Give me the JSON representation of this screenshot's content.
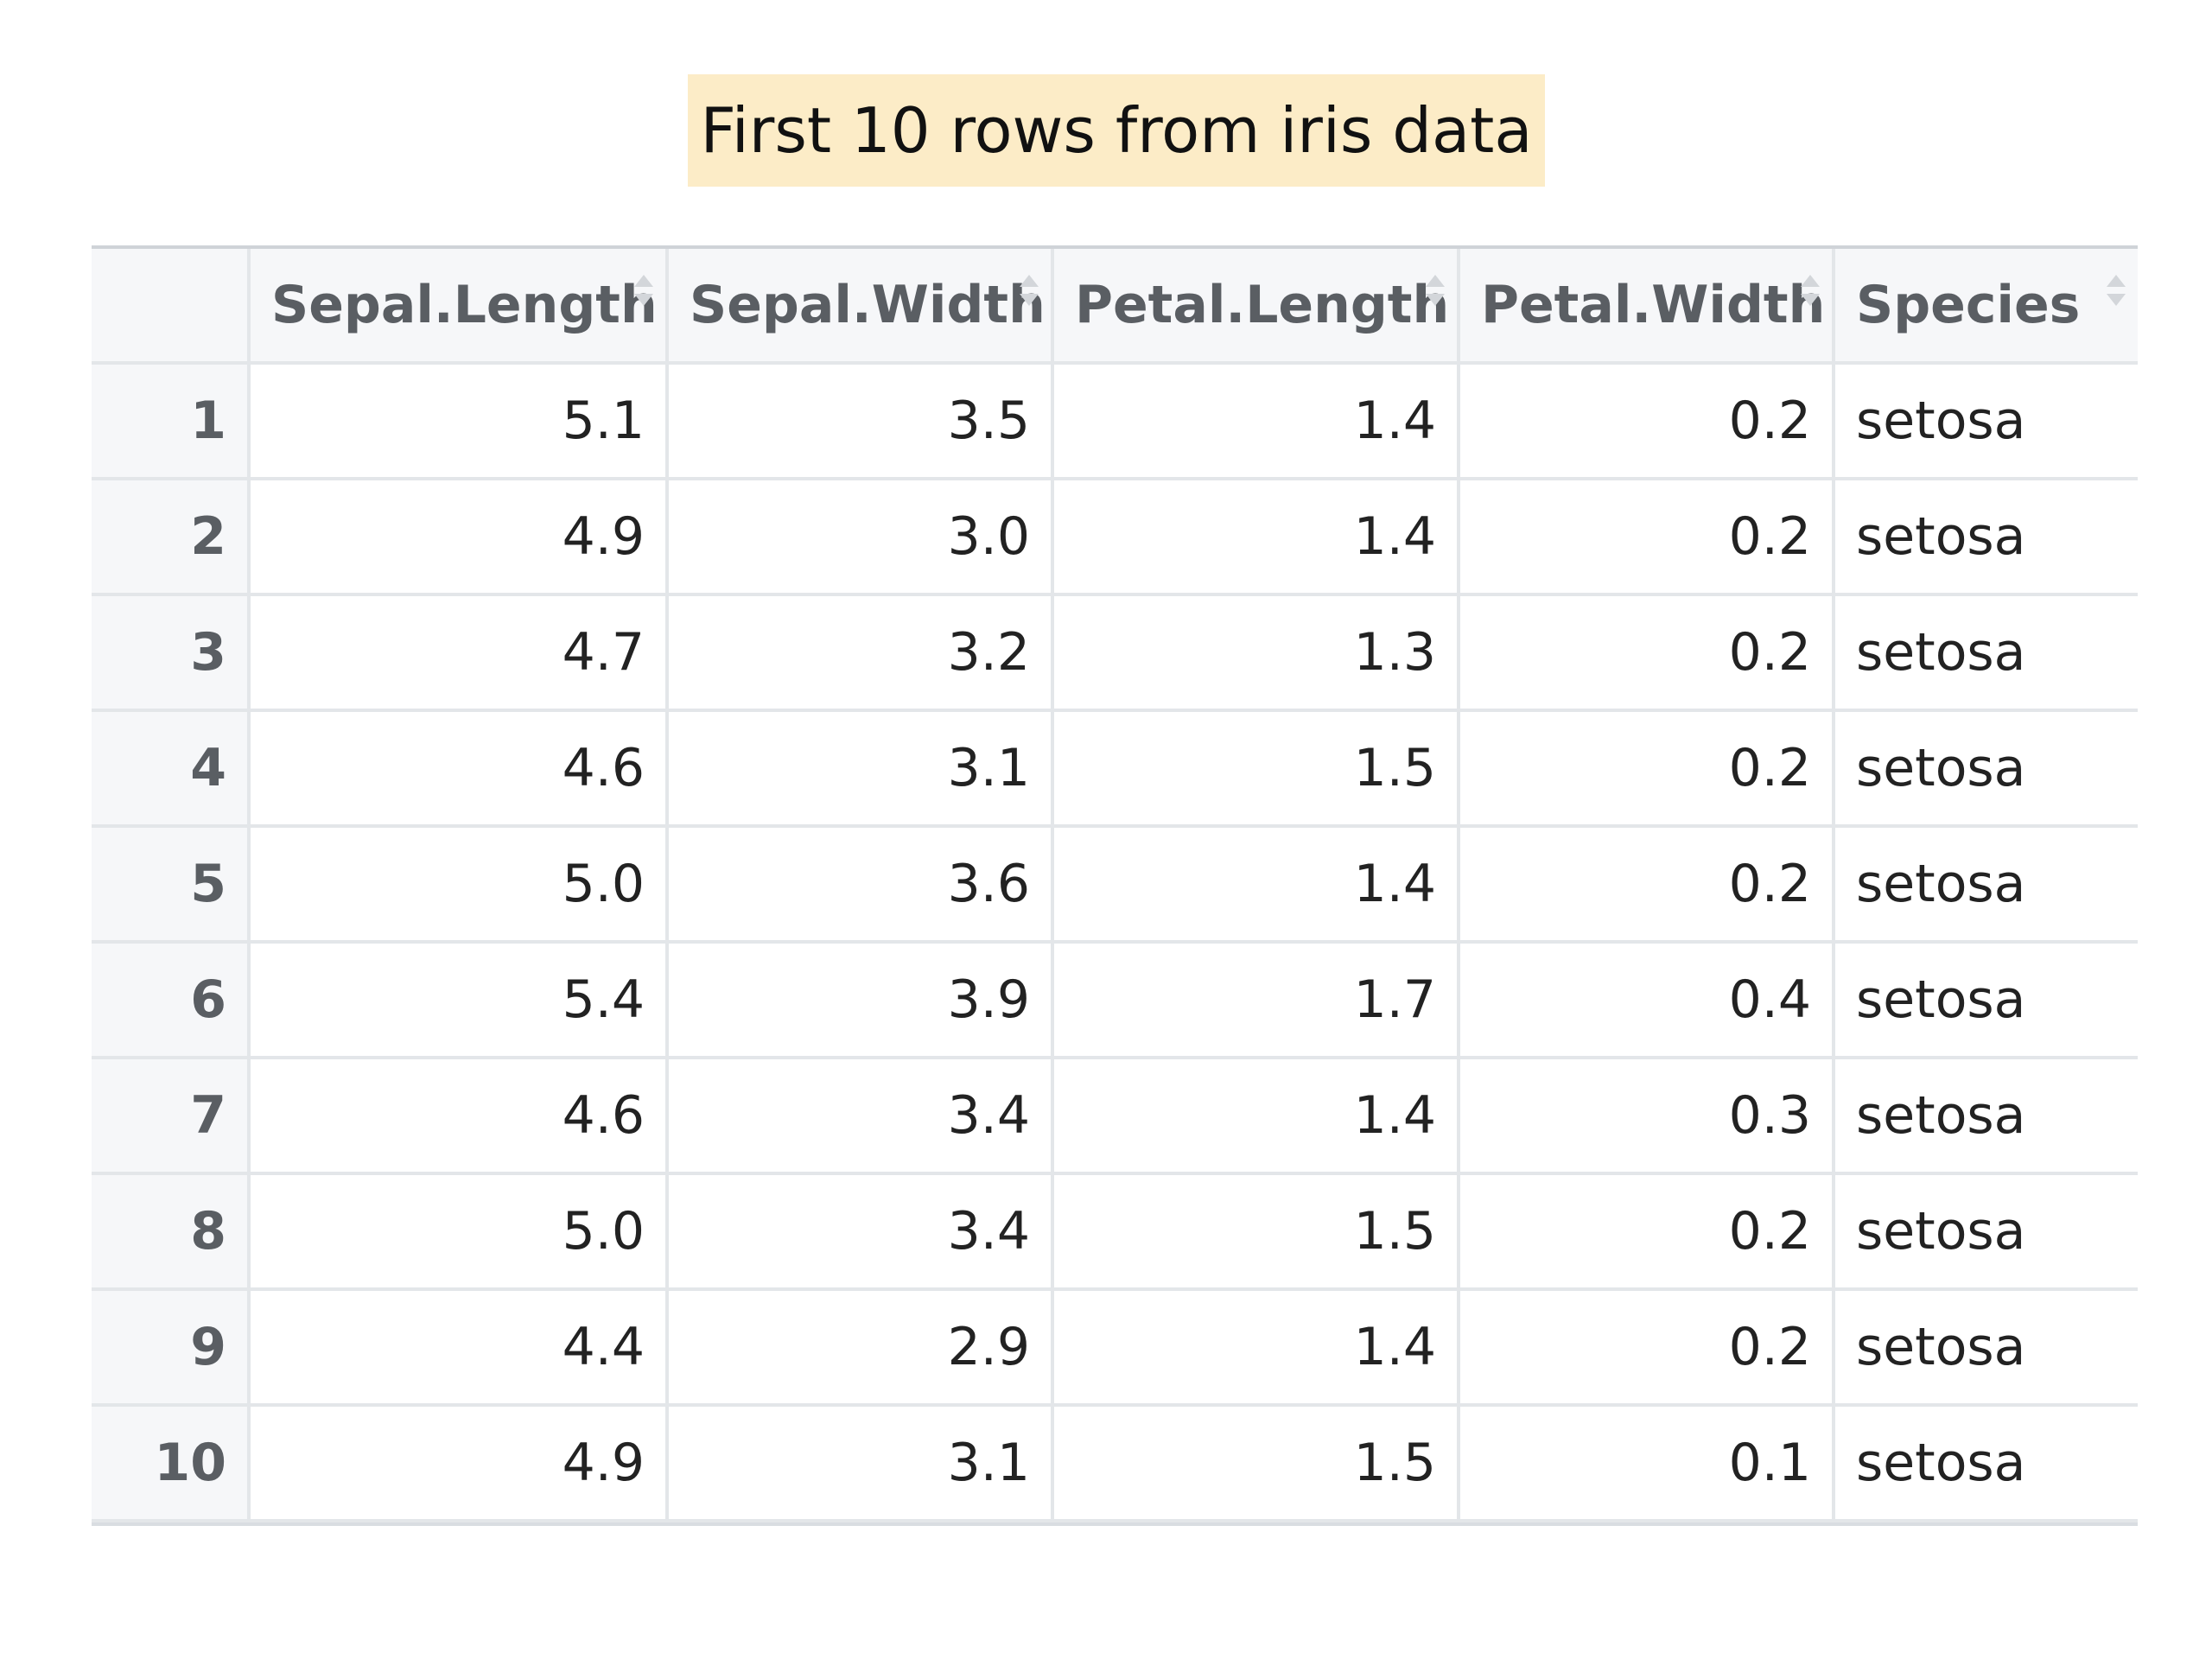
{
  "title": "First 10 rows from iris data",
  "colors": {
    "title_background": "#fcecc7",
    "header_background": "#f6f7f9",
    "header_text": "#5a5e63",
    "grid_line": "#e3e6e9"
  },
  "table": {
    "columns": [
      "",
      "Sepal.Length",
      "Sepal.Width",
      "Petal.Length",
      "Petal.Width",
      "Species"
    ],
    "rows": [
      {
        "rowname": "1",
        "cells": [
          "5.1",
          "3.5",
          "1.4",
          "0.2",
          "setosa"
        ]
      },
      {
        "rowname": "2",
        "cells": [
          "4.9",
          "3.0",
          "1.4",
          "0.2",
          "setosa"
        ]
      },
      {
        "rowname": "3",
        "cells": [
          "4.7",
          "3.2",
          "1.3",
          "0.2",
          "setosa"
        ]
      },
      {
        "rowname": "4",
        "cells": [
          "4.6",
          "3.1",
          "1.5",
          "0.2",
          "setosa"
        ]
      },
      {
        "rowname": "5",
        "cells": [
          "5.0",
          "3.6",
          "1.4",
          "0.2",
          "setosa"
        ]
      },
      {
        "rowname": "6",
        "cells": [
          "5.4",
          "3.9",
          "1.7",
          "0.4",
          "setosa"
        ]
      },
      {
        "rowname": "7",
        "cells": [
          "4.6",
          "3.4",
          "1.4",
          "0.3",
          "setosa"
        ]
      },
      {
        "rowname": "8",
        "cells": [
          "5.0",
          "3.4",
          "1.5",
          "0.2",
          "setosa"
        ]
      },
      {
        "rowname": "9",
        "cells": [
          "4.4",
          "2.9",
          "1.4",
          "0.2",
          "setosa"
        ]
      },
      {
        "rowname": "10",
        "cells": [
          "4.9",
          "3.1",
          "1.5",
          "0.1",
          "setosa"
        ]
      }
    ]
  }
}
